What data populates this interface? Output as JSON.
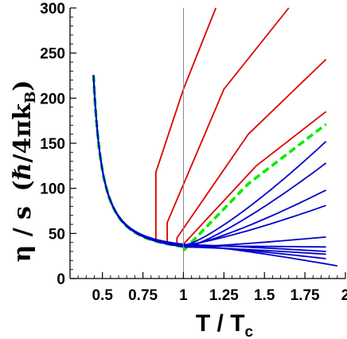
{
  "chart_data": {
    "type": "line",
    "xlim": [
      0.3,
      2.0
    ],
    "ylim": [
      0,
      300
    ],
    "x_ticks": [
      "0.5",
      "0.75",
      "1",
      "1.25",
      "1.5",
      "1.75",
      "2"
    ],
    "x_tick_values": [
      0.5,
      0.75,
      1.0,
      1.25,
      1.5,
      1.75,
      2.0
    ],
    "y_ticks": [
      "0",
      "50",
      "100",
      "150",
      "200",
      "250",
      "300"
    ],
    "y_tick_values": [
      0,
      50,
      100,
      150,
      200,
      250,
      300
    ],
    "xlabel": {
      "main": "T / T",
      "sub": "c"
    },
    "ylabel": {
      "main": "η / s",
      "unit": "(ℏ/4πk",
      "unit_sub": "B",
      "unit_close": ")"
    },
    "vertical_line_x": 1.0,
    "grid": false,
    "legend": "none",
    "colors": {
      "red": "#dd0000",
      "blue": "#0000cc",
      "green": "#00ee00",
      "vline": "#888888"
    },
    "series": [
      {
        "color": "red",
        "style": "solid",
        "Tc": 0.83,
        "jump_to": 118,
        "points": [
          [
            0.83,
            118
          ],
          [
            1.0,
            210
          ],
          [
            1.2,
            300
          ]
        ]
      },
      {
        "color": "red",
        "style": "solid",
        "Tc": 0.9,
        "jump_to": 62,
        "points": [
          [
            0.9,
            62
          ],
          [
            1.25,
            210
          ],
          [
            1.65,
            300
          ]
        ]
      },
      {
        "color": "red",
        "style": "solid",
        "Tc": 0.96,
        "jump_to": 45,
        "points": [
          [
            0.96,
            45
          ],
          [
            1.4,
            160
          ],
          [
            1.88,
            243
          ]
        ]
      },
      {
        "color": "red",
        "style": "solid",
        "Tc": 1.0,
        "jump_to": 38,
        "points": [
          [
            1.0,
            38
          ],
          [
            1.45,
            125
          ],
          [
            1.88,
            185
          ]
        ]
      },
      {
        "color": "green",
        "style": "dashed",
        "Tc": 1.0,
        "jump_to": 31,
        "points": [
          [
            1.0,
            31
          ],
          [
            1.4,
            105
          ],
          [
            1.88,
            171
          ]
        ]
      },
      {
        "color": "blue",
        "style": "solid",
        "end": [
          1.88,
          152
        ]
      },
      {
        "color": "blue",
        "style": "solid",
        "end": [
          1.88,
          128
        ]
      },
      {
        "color": "blue",
        "style": "solid",
        "end": [
          1.88,
          98
        ]
      },
      {
        "color": "blue",
        "style": "solid",
        "end": [
          1.88,
          81
        ]
      },
      {
        "color": "blue",
        "style": "solid",
        "end": [
          1.88,
          46
        ]
      },
      {
        "color": "blue",
        "style": "solid",
        "end": [
          1.88,
          35
        ]
      },
      {
        "color": "blue",
        "style": "solid",
        "end": [
          1.88,
          30
        ]
      },
      {
        "color": "blue",
        "style": "solid",
        "end": [
          1.88,
          27
        ]
      },
      {
        "color": "blue",
        "style": "solid",
        "end": [
          1.88,
          22
        ]
      },
      {
        "color": "blue",
        "style": "solid",
        "end": [
          1.95,
          14
        ]
      }
    ]
  }
}
